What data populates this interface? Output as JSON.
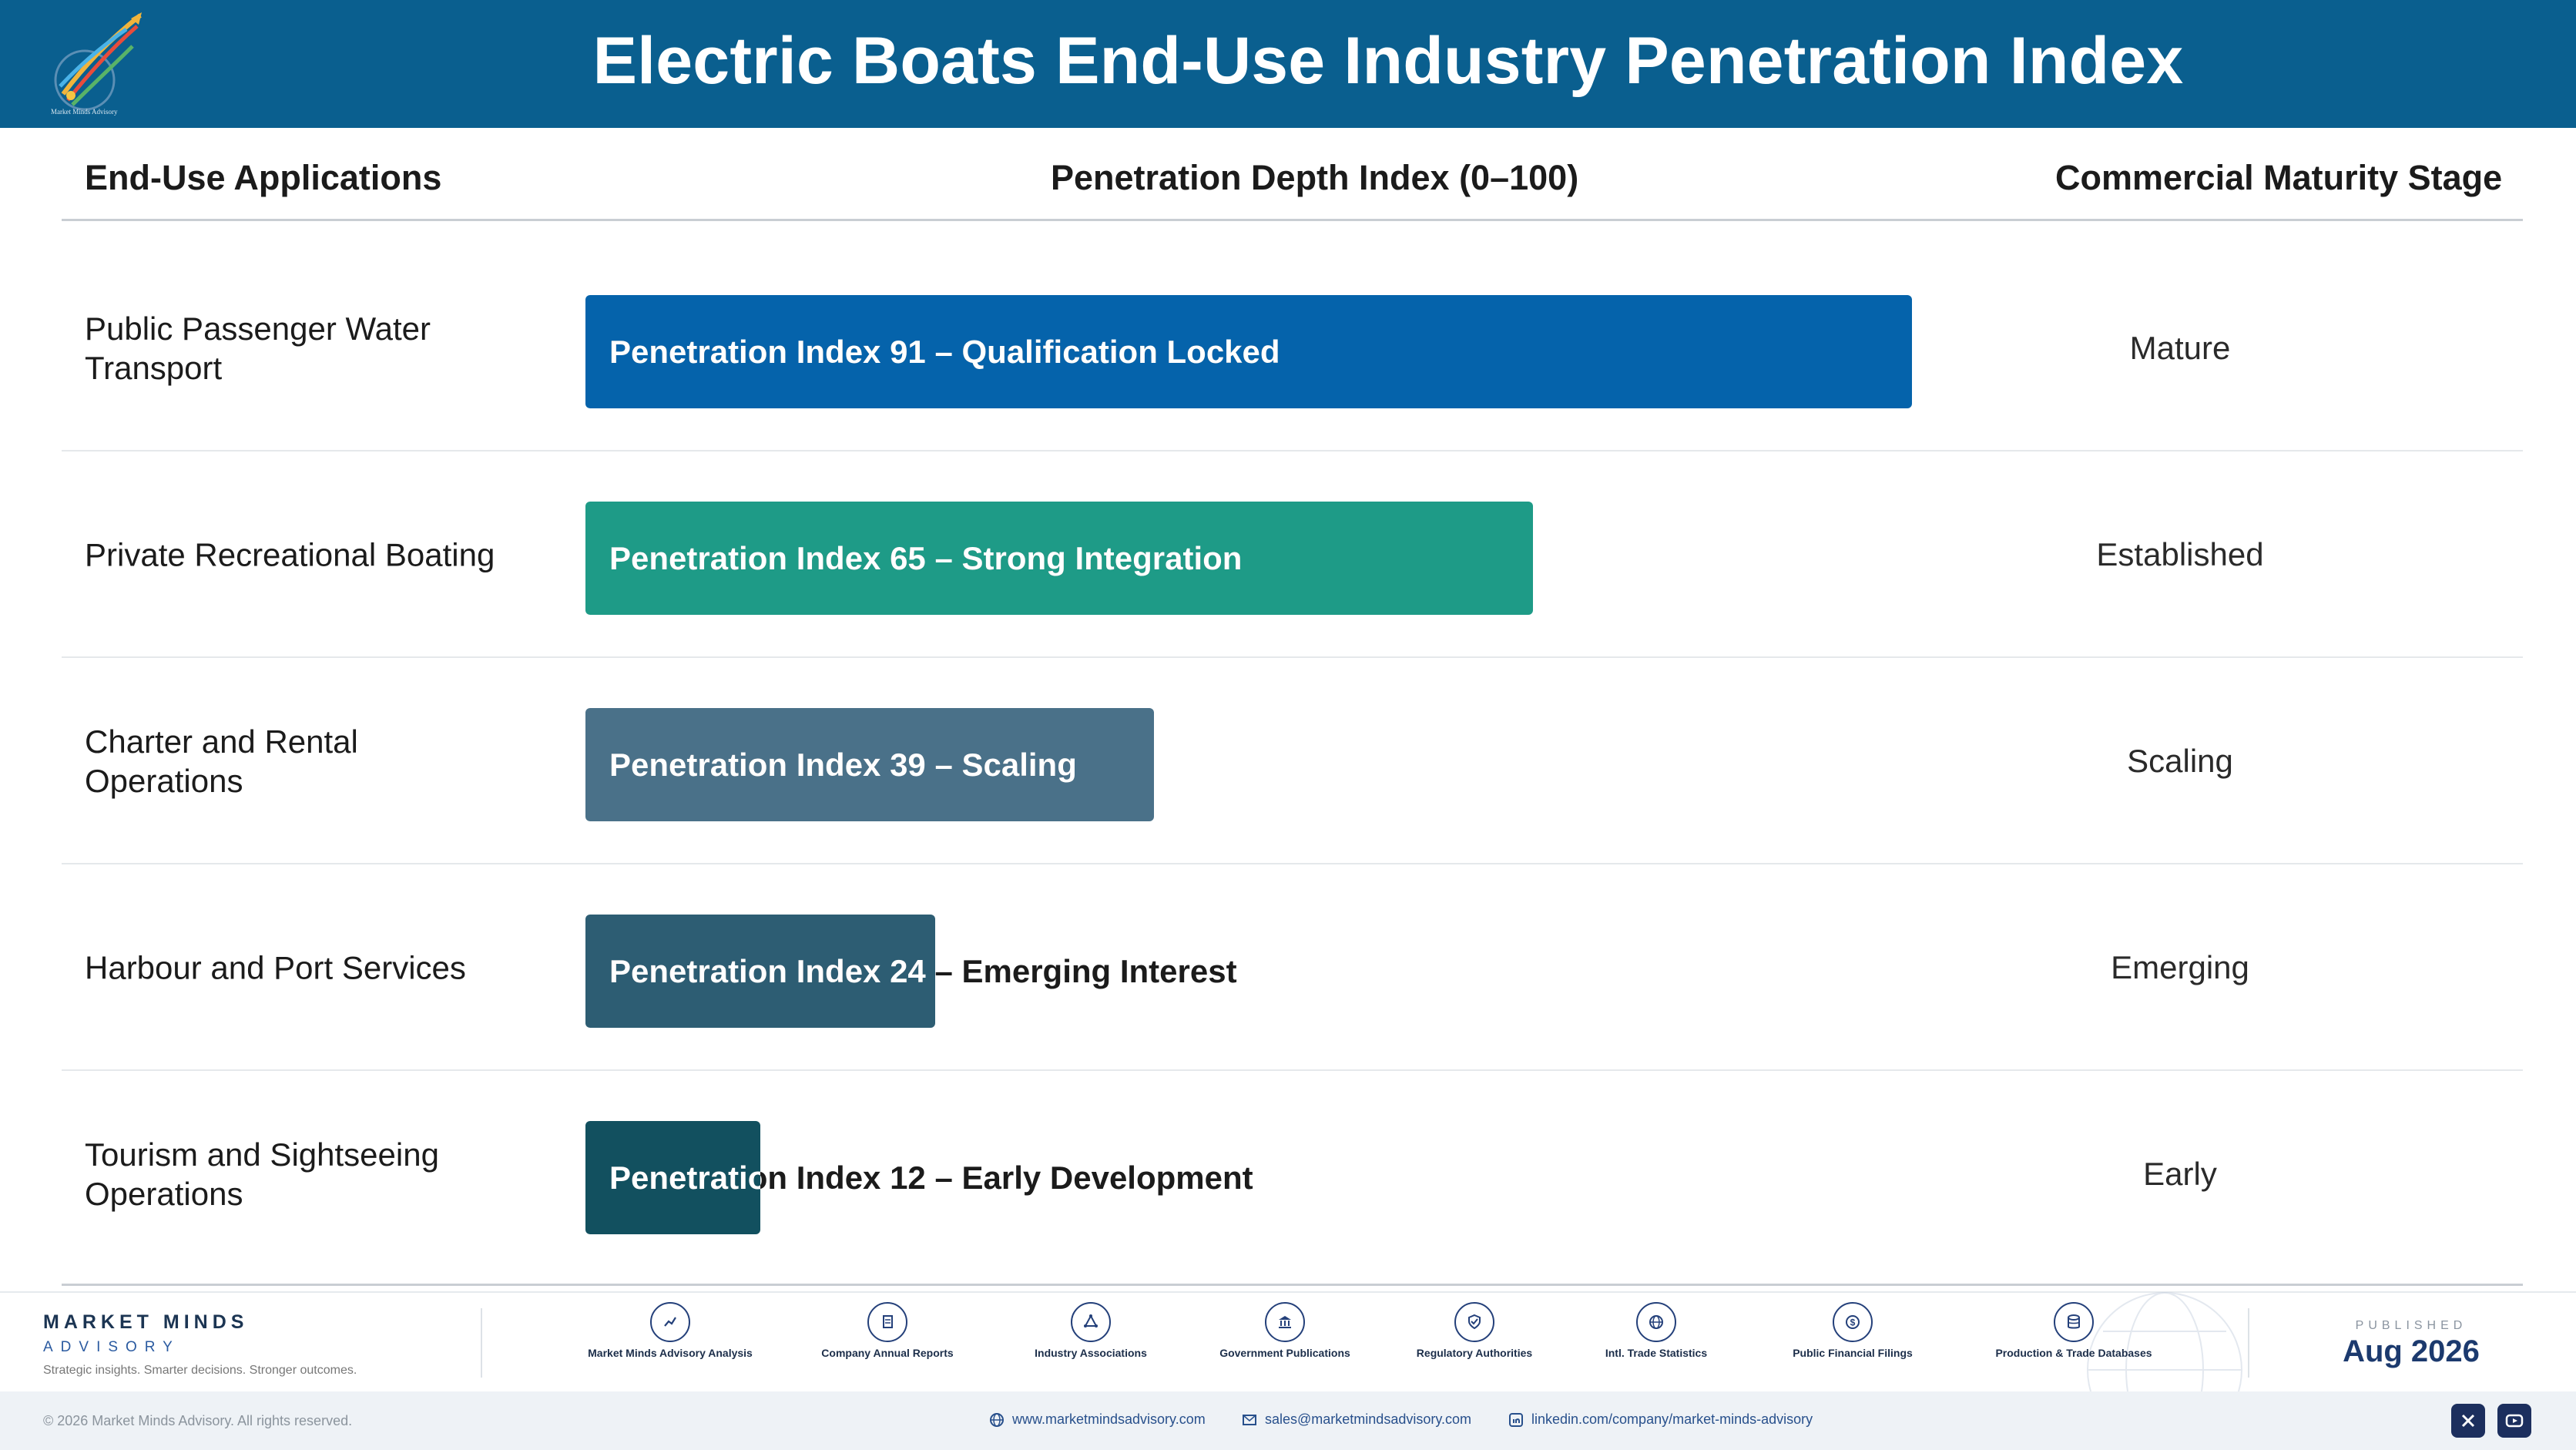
{
  "header": {
    "title": "Electric Boats End-Use Industry Penetration Index",
    "logo_text": "Market Minds Advisory"
  },
  "table": {
    "headers": {
      "application": "End-Use Applications",
      "index": "Penetration Depth Index (0–100)",
      "stage": "Commercial Maturity Stage"
    }
  },
  "chart_data": {
    "type": "bar",
    "orientation": "horizontal",
    "title": "Electric Boats End-Use Industry Penetration Index",
    "xlim": [
      0,
      100
    ],
    "categories": [
      "Public Passenger Water Transport",
      "Private Recreational Boating",
      "Charter and Rental Operations",
      "Harbour and Port Services",
      "Tourism and Sightseeing Operations"
    ],
    "values": [
      91,
      65,
      39,
      24,
      12
    ],
    "bar_labels": [
      "Penetration Index 91 – Qualification Locked",
      "Penetration Index 65 – Strong Integration",
      "Penetration Index 39 – Scaling",
      "Penetration Index 24 – Emerging Interest",
      "Penetration Index 12 – Early Development"
    ],
    "stages": [
      "Mature",
      "Established",
      "Scaling",
      "Emerging",
      "Early"
    ],
    "colors": [
      "#0563ab",
      "#1e9b87",
      "#4a7189",
      "#2d5d73",
      "#12505f"
    ]
  },
  "footer": {
    "brand_name": "MARKET MINDS",
    "brand_sub": "ADVISORY",
    "tagline": "Strategic insights. Smarter decisions. Stronger outcomes.",
    "sources": [
      {
        "label": "Market Minds Advisory Analysis",
        "icon": "trend-chart-icon"
      },
      {
        "label": "Company Annual Reports",
        "icon": "document-icon"
      },
      {
        "label": "Industry Associations",
        "icon": "network-icon"
      },
      {
        "label": "Government Publications",
        "icon": "government-building-icon"
      },
      {
        "label": "Regulatory Authorities",
        "icon": "shield-check-icon"
      },
      {
        "label": "Intl. Trade Statistics",
        "icon": "globe-icon"
      },
      {
        "label": "Public Financial Filings",
        "icon": "coin-icon"
      },
      {
        "label": "Production & Trade Databases",
        "icon": "database-icon"
      }
    ],
    "published_label": "PUBLISHED",
    "published_date": "Aug 2026",
    "copyright": "© 2026 Market Minds Advisory. All rights reserved.",
    "website": "www.marketmindsadvisory.com",
    "email": "sales@marketmindsadvisory.com",
    "linkedin": "linkedin.com/company/market-minds-advisory"
  }
}
